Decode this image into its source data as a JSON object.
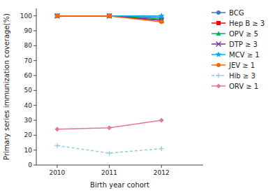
{
  "chart_data": {
    "type": "line",
    "x": [
      2010,
      2011,
      2012
    ],
    "series": [
      {
        "name": "BCG",
        "color": "#4472C4",
        "marker": "circle",
        "line_style": "solid",
        "values": [
          100,
          100,
          99
        ]
      },
      {
        "name": "Hep B ≥ 3",
        "color": "#FF0000",
        "marker": "square",
        "line_style": "solid",
        "values": [
          100,
          100,
          97
        ]
      },
      {
        "name": "OPV ≥ 5",
        "color": "#00B050",
        "marker": "triangle",
        "line_style": "solid",
        "values": [
          100,
          100,
          98
        ]
      },
      {
        "name": "DTP ≥ 3",
        "color": "#7030A0",
        "marker": "x",
        "line_style": "solid",
        "values": [
          100,
          100,
          97
        ]
      },
      {
        "name": "MCV ≥ 1",
        "color": "#00B0F0",
        "marker": "star",
        "line_style": "solid",
        "values": [
          100,
          100,
          100
        ]
      },
      {
        "name": "JEV ≥ 1",
        "color": "#FF6600",
        "marker": "circle",
        "line_style": "solid",
        "values": [
          100,
          100,
          96
        ]
      },
      {
        "name": "Hib ≥ 3",
        "color": "#92CDDC",
        "marker": "plus",
        "line_style": "dashed",
        "values": [
          13,
          8,
          11
        ]
      },
      {
        "name": "ORV ≥ 1",
        "color": "#E6759B",
        "marker": "diamond",
        "line_style": "solid",
        "values": [
          24,
          25,
          30
        ]
      }
    ],
    "xlabel": "Birth year cohort",
    "ylabel": "Primary series immunization coverage(%)",
    "xlim": [
      2009.6,
      2012.8
    ],
    "xticks": [
      2010,
      2011,
      2012
    ],
    "ylim": [
      0,
      105
    ],
    "yticks": [
      0,
      10,
      20,
      30,
      40,
      50,
      60,
      70,
      80,
      90,
      100
    ],
    "grid": false,
    "legend": "right"
  }
}
